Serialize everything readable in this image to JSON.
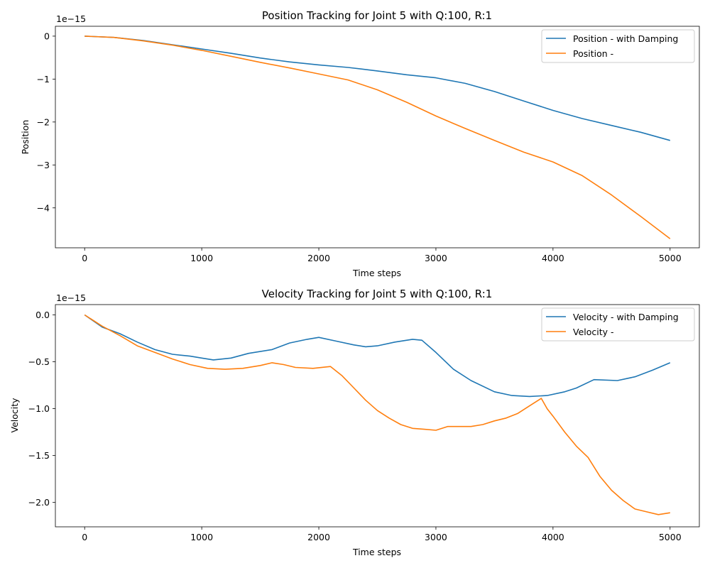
{
  "chart_data": [
    {
      "type": "line",
      "title": "Position Tracking for Joint 5 with Q:100, R:1",
      "xlabel": "Time steps",
      "ylabel": "Position",
      "y_offset_text": "1e−15",
      "xlim": [
        -250,
        5250
      ],
      "ylim": [
        -4.93,
        0.23
      ],
      "xticks": [
        0,
        1000,
        2000,
        3000,
        4000,
        5000
      ],
      "xtick_labels": [
        "0",
        "1000",
        "2000",
        "3000",
        "4000",
        "5000"
      ],
      "yticks": [
        0,
        -1,
        -2,
        -3,
        -4
      ],
      "ytick_labels": [
        "0",
        "−1",
        "−2",
        "−3",
        "−4"
      ],
      "legend_location": "upper right",
      "grid": false,
      "series": [
        {
          "name": "Position - with Damping",
          "color": "#1f77b4",
          "x": [
            0,
            250,
            500,
            750,
            1000,
            1250,
            1500,
            1750,
            2000,
            2250,
            2500,
            2750,
            3000,
            3250,
            3500,
            3750,
            4000,
            4250,
            4500,
            4750,
            5000
          ],
          "y": [
            0,
            -0.03,
            -0.1,
            -0.2,
            -0.3,
            -0.4,
            -0.51,
            -0.6,
            -0.67,
            -0.73,
            -0.81,
            -0.9,
            -0.97,
            -1.1,
            -1.29,
            -1.51,
            -1.73,
            -1.92,
            -2.08,
            -2.24,
            -2.43
          ]
        },
        {
          "name": "Position -",
          "color": "#ff7f0e",
          "x": [
            0,
            250,
            500,
            750,
            1000,
            1250,
            1500,
            1750,
            2000,
            2250,
            2500,
            2750,
            3000,
            3250,
            3500,
            3750,
            4000,
            4250,
            4500,
            4750,
            5000
          ],
          "y": [
            0,
            -0.03,
            -0.11,
            -0.21,
            -0.33,
            -0.47,
            -0.61,
            -0.74,
            -0.88,
            -1.02,
            -1.25,
            -1.54,
            -1.86,
            -2.15,
            -2.43,
            -2.7,
            -2.93,
            -3.25,
            -3.7,
            -4.2,
            -4.72
          ]
        }
      ]
    },
    {
      "type": "line",
      "title": "Velocity Tracking for Joint 5 with Q:100, R:1",
      "xlabel": "Time steps",
      "ylabel": "Velocity",
      "y_offset_text": "1e−15",
      "xlim": [
        -250,
        5250
      ],
      "ylim": [
        -2.26,
        0.11
      ],
      "xticks": [
        0,
        1000,
        2000,
        3000,
        4000,
        5000
      ],
      "xtick_labels": [
        "0",
        "1000",
        "2000",
        "3000",
        "4000",
        "5000"
      ],
      "yticks": [
        0,
        -0.5,
        -1.0,
        -1.5,
        -2.0
      ],
      "ytick_labels": [
        "0.0",
        "−0.5",
        "−1.0",
        "−1.5",
        "−2.0"
      ],
      "legend_location": "upper right",
      "grid": false,
      "series": [
        {
          "name": "Velocity - with Damping",
          "color": "#1f77b4",
          "x": [
            0,
            150,
            300,
            450,
            600,
            750,
            900,
            1000,
            1100,
            1250,
            1400,
            1600,
            1750,
            1900,
            2000,
            2150,
            2300,
            2400,
            2500,
            2650,
            2800,
            2880,
            3000,
            3150,
            3300,
            3500,
            3650,
            3800,
            3950,
            4100,
            4200,
            4350,
            4550,
            4700,
            4850,
            5000
          ],
          "y": [
            0,
            -0.13,
            -0.2,
            -0.29,
            -0.37,
            -0.42,
            -0.44,
            -0.46,
            -0.48,
            -0.46,
            -0.41,
            -0.37,
            -0.3,
            -0.26,
            -0.24,
            -0.28,
            -0.32,
            -0.34,
            -0.33,
            -0.29,
            -0.26,
            -0.27,
            -0.4,
            -0.58,
            -0.7,
            -0.82,
            -0.86,
            -0.87,
            -0.86,
            -0.82,
            -0.78,
            -0.69,
            -0.7,
            -0.66,
            -0.59,
            -0.51
          ]
        },
        {
          "name": "Velocity -",
          "color": "#ff7f0e",
          "x": [
            0,
            150,
            300,
            450,
            600,
            750,
            900,
            1050,
            1200,
            1350,
            1500,
            1600,
            1700,
            1800,
            1950,
            2100,
            2200,
            2300,
            2400,
            2500,
            2600,
            2700,
            2800,
            2900,
            3000,
            3100,
            3200,
            3300,
            3400,
            3500,
            3600,
            3700,
            3800,
            3900,
            3950,
            4000,
            4100,
            4200,
            4300,
            4400,
            4500,
            4600,
            4700,
            4800,
            4900,
            5000
          ],
          "y": [
            0,
            -0.12,
            -0.22,
            -0.33,
            -0.4,
            -0.47,
            -0.53,
            -0.57,
            -0.58,
            -0.57,
            -0.54,
            -0.51,
            -0.53,
            -0.56,
            -0.57,
            -0.55,
            -0.65,
            -0.78,
            -0.91,
            -1.02,
            -1.1,
            -1.17,
            -1.21,
            -1.22,
            -1.23,
            -1.19,
            -1.19,
            -1.19,
            -1.17,
            -1.13,
            -1.1,
            -1.05,
            -0.97,
            -0.89,
            -1.0,
            -1.08,
            -1.25,
            -1.4,
            -1.52,
            -1.72,
            -1.87,
            -1.98,
            -2.07,
            -2.1,
            -2.13,
            -2.11
          ]
        }
      ]
    }
  ]
}
